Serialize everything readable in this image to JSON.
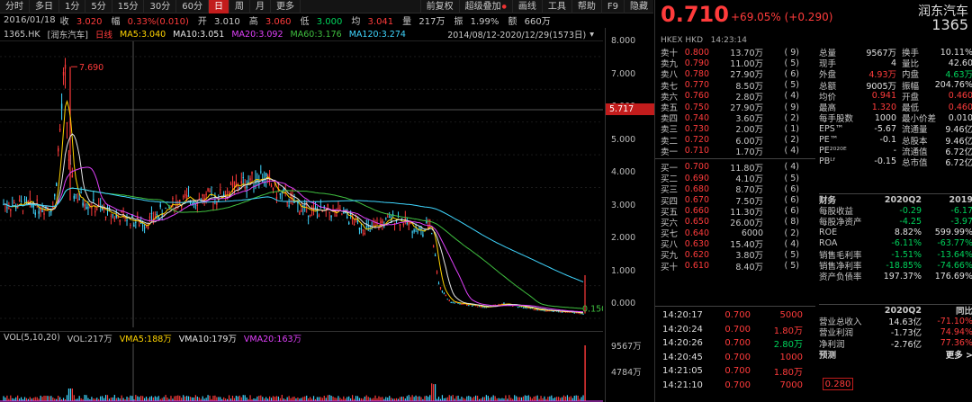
{
  "toolbar": {
    "periods": [
      "分时",
      "多日",
      "1分",
      "5分",
      "15分",
      "30分",
      "60分",
      "日",
      "周",
      "月",
      "更多"
    ],
    "active_period": "日",
    "right_items": [
      "前复权",
      "超级叠加",
      "画线",
      "工具",
      "帮助",
      "F9",
      "隐藏"
    ]
  },
  "info": {
    "date": "2016/01/18",
    "close_label": "收",
    "close": "3.020",
    "chg_label": "幅",
    "chg": "0.33%(0.010)",
    "open_label": "开",
    "open": "3.010",
    "high_label": "高",
    "high": "3.060",
    "low_label": "低",
    "low": "3.000",
    "avg_label": "均",
    "avg": "3.041",
    "vol_label": "量",
    "vol": "217万",
    "amp_label": "振",
    "amp": "1.99%",
    "amt_label": "额",
    "amt": "660万"
  },
  "ma": {
    "code": "1365.HK",
    "name": "[润东汽车]",
    "freq": "日线",
    "ma5": "MA5:3.040",
    "ma10": "MA10:3.051",
    "ma20": "MA20:3.092",
    "ma60": "MA60:3.176",
    "ma120": "MA120:3.274",
    "range": "2014/08/12-2020/12/29(1573日)"
  },
  "axis": {
    "labels": [
      "8.000",
      "7.000",
      "6.000",
      "5.000",
      "4.000",
      "3.000",
      "2.000",
      "1.000",
      "0.000"
    ],
    "current": "5.717",
    "vol_labels": [
      "9567万",
      "4784万"
    ]
  },
  "chart_annotations": {
    "high_mark": "7.690",
    "last_mark": "0.150"
  },
  "vol": {
    "title": "VOL(5,10,20)",
    "vol": "VOL:217万",
    "vma5": "VMA5:188万",
    "vma10": "VMA10:179万",
    "vma20": "VMA20:163万"
  },
  "quote": {
    "price": "0.710",
    "change": "+69.05% (+0.290)",
    "name": "润东汽车",
    "code": "1365",
    "exchange": "HKEX",
    "currency": "HKD",
    "time": "14:23:14"
  },
  "orderbook": {
    "asks": [
      {
        "label": "卖十",
        "price": "0.800",
        "vol": "13.70万",
        "n": "(   9)"
      },
      {
        "label": "卖九",
        "price": "0.790",
        "vol": "11.00万",
        "n": "(   5)"
      },
      {
        "label": "卖八",
        "price": "0.780",
        "vol": "27.90万",
        "n": "(   6)"
      },
      {
        "label": "卖七",
        "price": "0.770",
        "vol": "8.50万",
        "n": "(   5)"
      },
      {
        "label": "卖六",
        "price": "0.760",
        "vol": "2.80万",
        "n": "(   4)"
      },
      {
        "label": "卖五",
        "price": "0.750",
        "vol": "27.90万",
        "n": "(   9)"
      },
      {
        "label": "卖四",
        "price": "0.740",
        "vol": "3.60万",
        "n": "(   2)"
      },
      {
        "label": "卖三",
        "price": "0.730",
        "vol": "2.00万",
        "n": "(   1)"
      },
      {
        "label": "卖二",
        "price": "0.720",
        "vol": "6.00万",
        "n": "(   2)"
      },
      {
        "label": "卖一",
        "price": "0.710",
        "vol": "1.70万",
        "n": "(   4)"
      }
    ],
    "bids": [
      {
        "label": "买一",
        "price": "0.700",
        "vol": "11.80万",
        "n": "(   4)"
      },
      {
        "label": "买二",
        "price": "0.690",
        "vol": "4.10万",
        "n": "(   5)"
      },
      {
        "label": "买三",
        "price": "0.680",
        "vol": "8.70万",
        "n": "(   6)"
      },
      {
        "label": "买四",
        "price": "0.670",
        "vol": "7.50万",
        "n": "(   6)"
      },
      {
        "label": "买五",
        "price": "0.660",
        "vol": "11.30万",
        "n": "(   6)"
      },
      {
        "label": "买六",
        "price": "0.650",
        "vol": "26.00万",
        "n": "(   8)"
      },
      {
        "label": "买七",
        "price": "0.640",
        "vol": "6000",
        "n": "(   2)"
      },
      {
        "label": "买八",
        "price": "0.630",
        "vol": "15.40万",
        "n": "(   4)"
      },
      {
        "label": "买九",
        "price": "0.620",
        "vol": "3.80万",
        "n": "(   5)"
      },
      {
        "label": "买十",
        "price": "0.610",
        "vol": "8.40万",
        "n": "(   5)"
      }
    ]
  },
  "stats": [
    {
      "k1": "总量",
      "v1": "9567万",
      "c1": "white",
      "k2": "换手",
      "v2": "10.11%",
      "c2": "white"
    },
    {
      "k1": "现手",
      "v1": "4",
      "c1": "white",
      "k2": "量比",
      "v2": "42.60",
      "c2": "white"
    },
    {
      "k1": "外盘",
      "v1": "4.93万",
      "c1": "red",
      "k2": "内盘",
      "v2": "4.63万",
      "c2": "green"
    },
    {
      "k1": "总额",
      "v1": "9005万",
      "c1": "white",
      "k2": "振幅",
      "v2": "204.76%",
      "c2": "white"
    },
    {
      "k1": "均价",
      "v1": "0.941",
      "c1": "red",
      "k2": "开盘",
      "v2": "0.460",
      "c2": "red"
    },
    {
      "k1": "最高",
      "v1": "1.320",
      "c1": "red",
      "k2": "最低",
      "v2": "0.460",
      "c2": "red"
    },
    {
      "k1": "每手股数",
      "v1": "1000",
      "c1": "white",
      "k2": "最小价差",
      "v2": "0.010",
      "c2": "white"
    },
    {
      "k1": "EPS™",
      "v1": "-5.67",
      "c1": "white",
      "k2": "流通量",
      "v2": "9.46亿",
      "c2": "white"
    },
    {
      "k1": "PE™",
      "v1": "-0.1",
      "c1": "white",
      "k2": "总股本",
      "v2": "9.46亿",
      "c2": "white"
    },
    {
      "k1": "PE²⁰²⁰ᴱ",
      "v1": "-",
      "c1": "white",
      "k2": "流通值",
      "v2": "6.72亿",
      "c2": "white"
    },
    {
      "k1": "PBᴸᶠ",
      "v1": "-0.15",
      "c1": "white",
      "k2": "总市值",
      "v2": "6.72亿",
      "c2": "white"
    }
  ],
  "fin": {
    "header": [
      "财务",
      "2020Q2",
      "2019"
    ],
    "rows": [
      {
        "k": "每股收益",
        "a": "-0.29",
        "b": "-6.17"
      },
      {
        "k": "每股净资产",
        "a": "-4.25",
        "b": "-3.97"
      },
      {
        "k": "ROE",
        "a": "8.82%",
        "b": "599.99%"
      },
      {
        "k": "ROA",
        "a": "-6.11%",
        "b": "-63.77%"
      },
      {
        "k": "销售毛利率",
        "a": "-1.51%",
        "b": "-13.64%"
      },
      {
        "k": "销售净利率",
        "a": "-18.85%",
        "b": "-74.66%"
      },
      {
        "k": "资产负债率",
        "a": "197.37%",
        "b": "176.69%"
      }
    ]
  },
  "ticks": [
    {
      "t": "14:20:17",
      "p": "0.700",
      "v": "5000",
      "c": "red"
    },
    {
      "t": "14:20:24",
      "p": "0.700",
      "v": "1.80万",
      "c": "red"
    },
    {
      "t": "14:20:26",
      "p": "0.700",
      "v": "2.80万",
      "c": "green"
    },
    {
      "t": "14:20:45",
      "p": "0.700",
      "v": "1000",
      "c": "red"
    },
    {
      "t": "14:21:05",
      "p": "0.700",
      "v": "1.80万",
      "c": "red"
    },
    {
      "t": "14:21:10",
      "p": "0.700",
      "v": "7000",
      "c": "red"
    }
  ],
  "fin2": {
    "header": [
      "2020Q2",
      "同比"
    ],
    "rows": [
      {
        "k": "营业总收入",
        "a": "14.63亿",
        "b": "-71.10%",
        "bc": "red"
      },
      {
        "k": "营业利润",
        "a": "-1.73亿",
        "b": "74.94%",
        "bc": "red"
      },
      {
        "k": "净利润",
        "a": "-2.76亿",
        "b": "77.36%",
        "bc": "red"
      }
    ],
    "predict_label": "预测",
    "predict_value": "0.280",
    "more": "更多 >"
  }
}
